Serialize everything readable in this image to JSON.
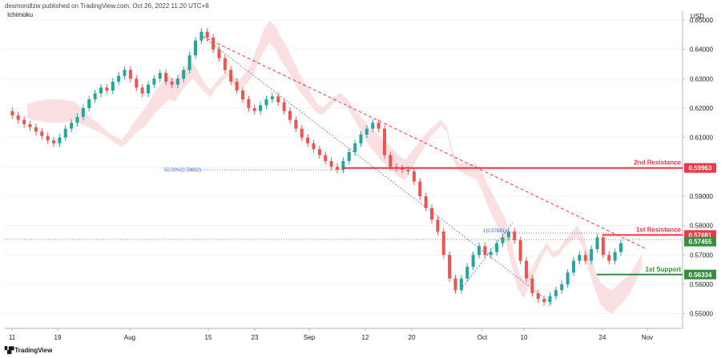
{
  "publisher": "desmondlzw published on TradingView.com, Oct 26, 2022 11:20 UTC+8",
  "footer": {
    "logo_text": "TradingView",
    "logo_icon": "tradingview-logo-icon"
  },
  "chart_data": {
    "type": "line",
    "title": "",
    "indicator": "Ichimoku",
    "currency": "USD",
    "ylim": [
      0.545,
      0.653
    ],
    "y_ticks": [
      "0.65000",
      "0.64000",
      "0.63000",
      "0.62000",
      "0.61000",
      "0.60000",
      "0.59000",
      "0.58000",
      "0.57000",
      "0.56000",
      "0.55000"
    ],
    "x_ticks": [
      "11",
      "19",
      "Aug",
      "15",
      "23",
      "Sep",
      "12",
      "20",
      "Oct",
      "10",
      "24",
      "Nov"
    ],
    "series": [
      {
        "values": [
          0.619,
          0.6175,
          0.616,
          0.6145,
          0.6135,
          0.612,
          0.6105,
          0.609,
          0.608,
          0.61,
          0.613,
          0.615,
          0.617,
          0.62,
          0.623,
          0.625,
          0.627,
          0.626,
          0.629,
          0.631,
          0.633,
          0.63,
          0.627,
          0.625,
          0.628,
          0.63,
          0.632,
          0.629,
          0.628,
          0.63,
          0.633,
          0.638,
          0.643,
          0.646,
          0.644,
          0.64,
          0.637,
          0.633,
          0.629,
          0.626,
          0.623,
          0.62,
          0.619,
          0.621,
          0.623,
          0.624,
          0.622,
          0.619,
          0.616,
          0.613,
          0.61,
          0.608,
          0.606,
          0.604,
          0.602,
          0.6,
          0.599,
          0.602,
          0.605,
          0.608,
          0.611,
          0.613,
          0.615,
          0.613,
          0.604,
          0.6,
          0.5995,
          0.599,
          0.5985,
          0.595,
          0.59,
          0.586,
          0.582,
          0.578,
          0.57,
          0.562,
          0.558,
          0.562,
          0.566,
          0.57,
          0.573,
          0.57,
          0.571,
          0.574,
          0.576,
          0.578,
          0.575,
          0.568,
          0.562,
          0.557,
          0.555,
          0.554,
          0.556,
          0.558,
          0.56,
          0.564,
          0.568,
          0.57,
          0.568,
          0.572,
          0.576,
          0.57,
          0.568,
          0.571,
          0.574
        ]
      }
    ],
    "levels": [
      {
        "name": "2nd Resistance",
        "value": "0.59963",
        "color": "#f23645"
      },
      {
        "name": "1st Resistance",
        "value": "0.57681",
        "color": "#f23645"
      },
      {
        "name": "1st Support",
        "value": "0.56334",
        "color": "#388e3c"
      }
    ],
    "current_price": {
      "value": "0.57455",
      "color": "#388e3c"
    },
    "fib_labels": [
      "50.00%(0.59892)",
      "1(0.57681)"
    ]
  }
}
